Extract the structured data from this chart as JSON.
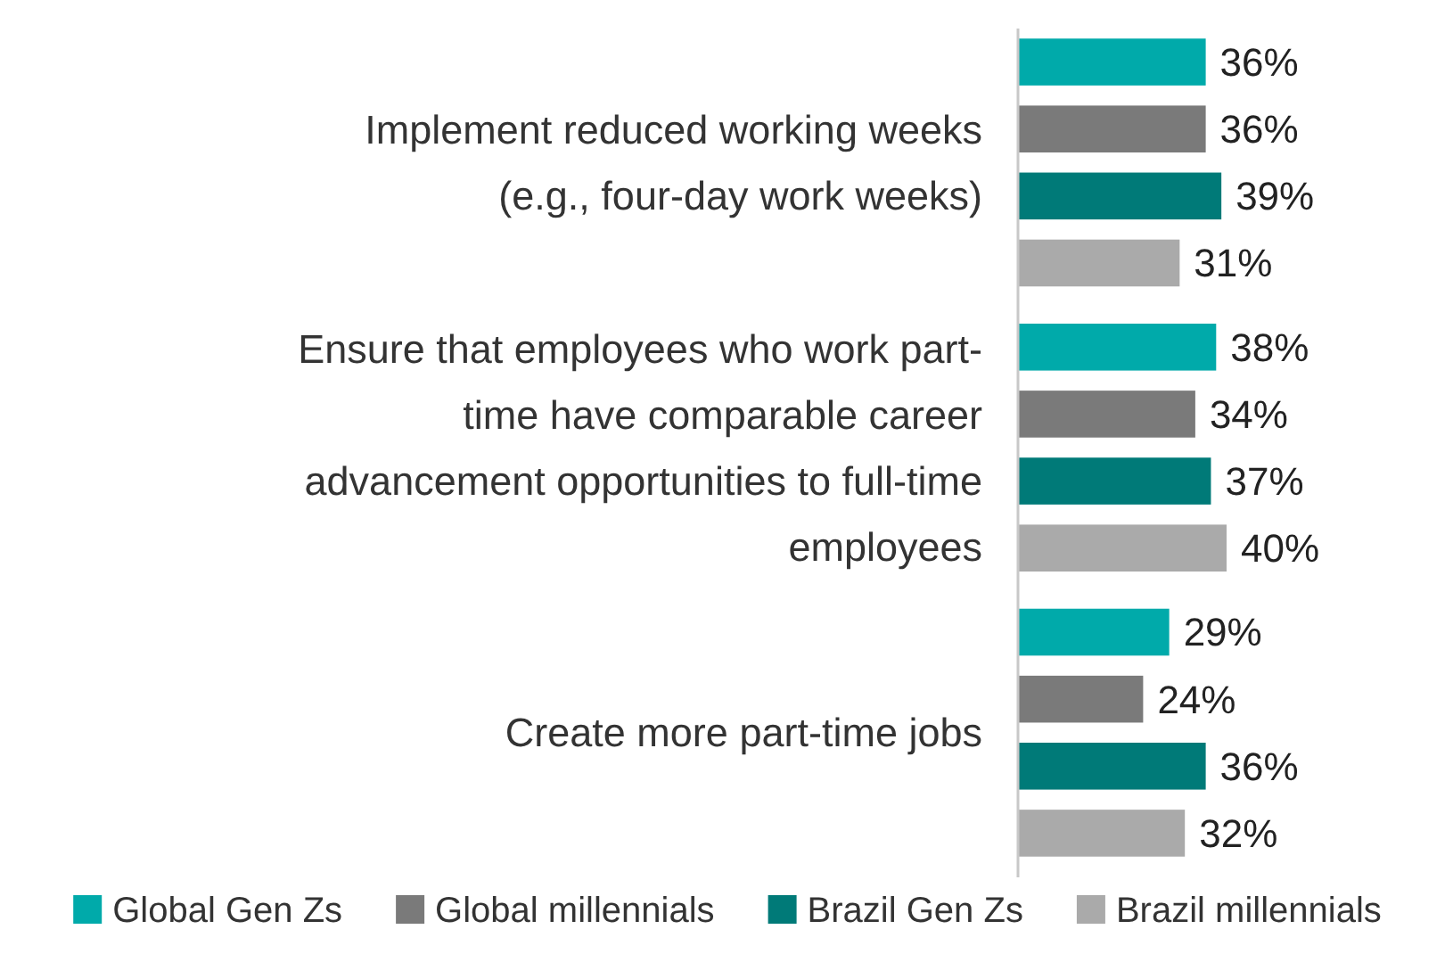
{
  "chart_data": {
    "type": "bar",
    "orientation": "horizontal",
    "categories": [
      "Implement reduced working weeks (e.g., four-day work weeks)",
      "Ensure that employees who work part-time have comparable career advancement opportunities to full-time employees",
      "Create more part-time jobs"
    ],
    "series": [
      {
        "name": "Global Gen Zs",
        "color": "#00aaaa",
        "values": [
          36,
          38,
          29
        ],
        "value_labels": [
          "36%",
          "38%",
          "29%"
        ]
      },
      {
        "name": "Global millennials",
        "color": "#7a7a7a",
        "values": [
          36,
          34,
          24
        ],
        "value_labels": [
          "36%",
          "34%",
          "24%"
        ]
      },
      {
        "name": "Brazil Gen Zs",
        "color": "#007a78",
        "values": [
          39,
          37,
          36
        ],
        "value_labels": [
          "39%",
          "37%",
          "36%"
        ]
      },
      {
        "name": "Brazil millennials",
        "color": "#aaaaaa",
        "values": [
          31,
          40,
          32
        ],
        "value_labels": [
          "31%",
          "40%",
          "32%"
        ]
      }
    ],
    "legend": "bottom"
  }
}
